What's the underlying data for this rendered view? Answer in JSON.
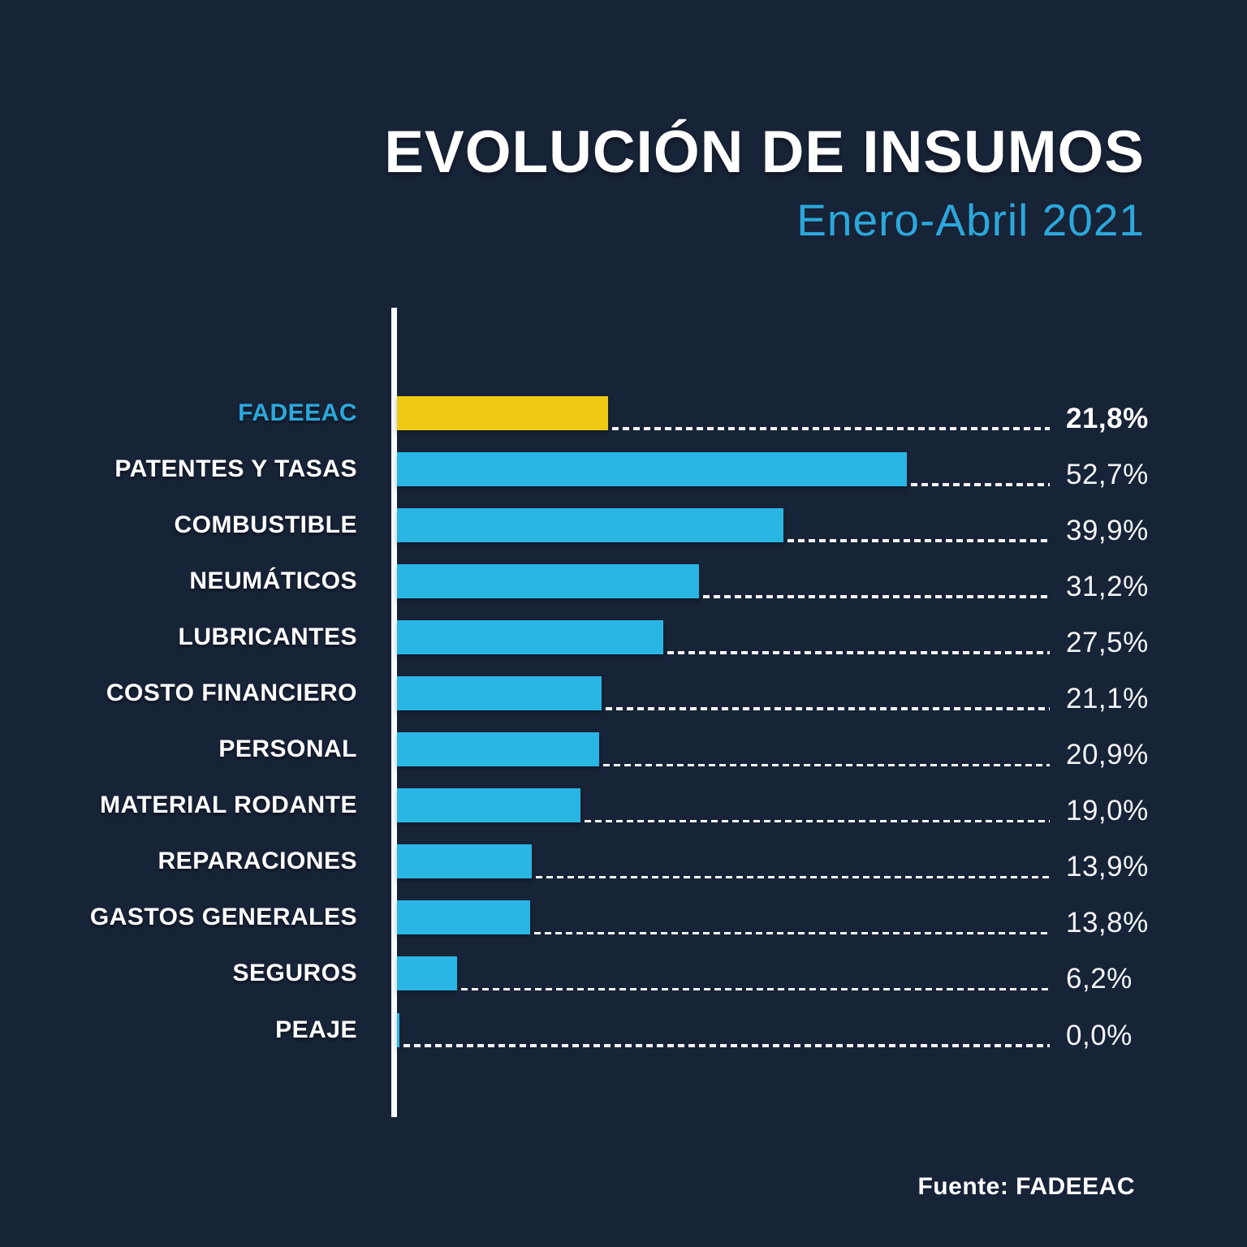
{
  "header": {
    "title": "EVOLUCIÓN DE INSUMOS",
    "subtitle": "Enero-Abril 2021"
  },
  "footer": {
    "source_label": "Fuente: FADEEAC"
  },
  "colors": {
    "background": "#172337",
    "bar": "#29B6E4",
    "highlight_bar": "#EDC913",
    "accent_text": "#2CA8DB",
    "text": "#FFFFFF",
    "axis_line": "#F7FAFC"
  },
  "chart_data": {
    "type": "bar",
    "orientation": "horizontal",
    "title": "EVOLUCIÓN DE INSUMOS",
    "subtitle": "Enero-Abril 2021",
    "source": "Fuente: FADEEAC",
    "unit": "%",
    "xlim": [
      0,
      67.5
    ],
    "grid": false,
    "legend": "none",
    "highlight_category": "FADEEAC",
    "categories": [
      "FADEEAC",
      "PATENTES Y TASAS",
      "COMBUSTIBLE",
      "NEUMÁTICOS",
      "LUBRICANTES",
      "COSTO FINANCIERO",
      "PERSONAL",
      "MATERIAL RODANTE",
      "REPARACIONES",
      "GASTOS GENERALES",
      "SEGUROS",
      "PEAJE"
    ],
    "values": [
      21.8,
      52.7,
      39.9,
      31.2,
      27.5,
      21.1,
      20.9,
      19.0,
      13.9,
      13.8,
      6.2,
      0.0
    ],
    "value_labels": [
      "21,8%",
      "52,7%",
      "39,9%",
      "31,2%",
      "27,5%",
      "21,1%",
      "20,9%",
      "19,0%",
      "13,9%",
      "13,8%",
      "6,2%",
      "0,0%"
    ]
  }
}
